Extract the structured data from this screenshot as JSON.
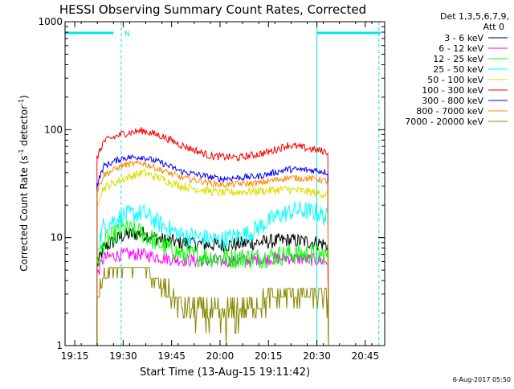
{
  "chart_data": {
    "type": "line",
    "title": "HESSI Observing Summary Count Rates, Corrected",
    "xlabel": "Start Time (13-Aug-15 19:11:42)",
    "ylabel_main": "Corrected Count Rate (s",
    "ylabel_sup1": "-1",
    "ylabel_mid": " detector",
    "ylabel_sup2": "-1",
    "ylabel_end": ")",
    "footer": "6-Aug-2017 05:50",
    "y_scale": "log",
    "ylim": [
      1,
      1000
    ],
    "xlim_minutes": [
      19.2,
      20.85
    ],
    "x_ticks": [
      {
        "t": 19.25,
        "label": "19:15"
      },
      {
        "t": 19.5,
        "label": "19:30"
      },
      {
        "t": 19.75,
        "label": "19:45"
      },
      {
        "t": 20.0,
        "label": "20:00"
      },
      {
        "t": 20.25,
        "label": "20:15"
      },
      {
        "t": 20.5,
        "label": "20:30"
      },
      {
        "t": 20.75,
        "label": "20:45"
      }
    ],
    "y_ticks": [
      {
        "v": 1,
        "label": "1"
      },
      {
        "v": 10,
        "label": "10"
      },
      {
        "v": 100,
        "label": "100"
      },
      {
        "v": 1000,
        "label": "1000"
      }
    ],
    "legend_header": [
      "Det 1,3,5,6,7,9,",
      "Att 0"
    ],
    "legend_position": "right",
    "flags": {
      "night_label": "N",
      "color": "#00e5e5",
      "night_intervals": [
        [
          19.2,
          19.45
        ],
        [
          20.5,
          20.83
        ]
      ],
      "solid_lines": [
        19.2,
        20.5
      ],
      "dashed_lines": [
        19.49,
        20.82
      ]
    },
    "series": [
      {
        "name": "3 - 6 keV",
        "color": "#000000",
        "noise": 0.07,
        "points": [
          [
            19.365,
            5.5
          ],
          [
            19.4,
            8
          ],
          [
            19.5,
            10.5
          ],
          [
            19.6,
            11
          ],
          [
            19.7,
            9.5
          ],
          [
            19.8,
            9
          ],
          [
            20.0,
            8.5
          ],
          [
            20.2,
            9
          ],
          [
            20.35,
            9.5
          ],
          [
            20.5,
            9
          ],
          [
            20.56,
            8.5
          ]
        ]
      },
      {
        "name": "6 - 12 keV",
        "color": "#ff00ff",
        "noise": 0.06,
        "points": [
          [
            19.365,
            4.5
          ],
          [
            19.4,
            6.5
          ],
          [
            19.5,
            7
          ],
          [
            19.6,
            7
          ],
          [
            19.7,
            6.5
          ],
          [
            19.8,
            6.2
          ],
          [
            20.0,
            6.0
          ],
          [
            20.2,
            6.3
          ],
          [
            20.35,
            6.5
          ],
          [
            20.5,
            6.2
          ],
          [
            20.56,
            6
          ]
        ]
      },
      {
        "name": "12 - 25 keV",
        "color": "#00ff00",
        "noise": 0.1,
        "points": [
          [
            19.365,
            5.5
          ],
          [
            19.4,
            9
          ],
          [
            19.5,
            12
          ],
          [
            19.6,
            11
          ],
          [
            19.7,
            8.5
          ],
          [
            19.8,
            7
          ],
          [
            20.0,
            6.5
          ],
          [
            20.2,
            6.5
          ],
          [
            20.35,
            7
          ],
          [
            20.5,
            7
          ],
          [
            20.56,
            6.8
          ]
        ]
      },
      {
        "name": "25 - 50 keV",
        "color": "#00ffff",
        "noise": 0.09,
        "points": [
          [
            19.365,
            8
          ],
          [
            19.4,
            13
          ],
          [
            19.5,
            16
          ],
          [
            19.6,
            17
          ],
          [
            19.7,
            13
          ],
          [
            19.8,
            10.5
          ],
          [
            20.0,
            9.5
          ],
          [
            20.15,
            11
          ],
          [
            20.3,
            16
          ],
          [
            20.4,
            18
          ],
          [
            20.5,
            17
          ],
          [
            20.56,
            15
          ]
        ]
      },
      {
        "name": "50 - 100 keV",
        "color": "#dddd00",
        "noise": 0.04,
        "points": [
          [
            19.365,
            21
          ],
          [
            19.4,
            29
          ],
          [
            19.5,
            35
          ],
          [
            19.6,
            40
          ],
          [
            19.7,
            35
          ],
          [
            19.8,
            30
          ],
          [
            20.0,
            26
          ],
          [
            20.2,
            27
          ],
          [
            20.35,
            28
          ],
          [
            20.5,
            26
          ],
          [
            20.56,
            25
          ]
        ]
      },
      {
        "name": "100 - 300 keV",
        "color": "#ff0000",
        "noise": 0.035,
        "points": [
          [
            19.365,
            55
          ],
          [
            19.4,
            78
          ],
          [
            19.5,
            92
          ],
          [
            19.6,
            98
          ],
          [
            19.7,
            87
          ],
          [
            19.8,
            72
          ],
          [
            19.95,
            57
          ],
          [
            20.1,
            55
          ],
          [
            20.25,
            62
          ],
          [
            20.35,
            72
          ],
          [
            20.45,
            67
          ],
          [
            20.56,
            62
          ]
        ]
      },
      {
        "name": "300 - 800 keV",
        "color": "#0000ff",
        "noise": 0.03,
        "points": [
          [
            19.365,
            31
          ],
          [
            19.4,
            46
          ],
          [
            19.5,
            55
          ],
          [
            19.6,
            56
          ],
          [
            19.7,
            49
          ],
          [
            19.8,
            41
          ],
          [
            20.0,
            35
          ],
          [
            20.2,
            37
          ],
          [
            20.35,
            43
          ],
          [
            20.5,
            42
          ],
          [
            20.56,
            40
          ]
        ]
      },
      {
        "name": "800 - 7000 keV",
        "color": "#ff8800",
        "noise": 0.03,
        "points": [
          [
            19.365,
            27
          ],
          [
            19.4,
            38
          ],
          [
            19.5,
            47
          ],
          [
            19.6,
            49
          ],
          [
            19.7,
            42
          ],
          [
            19.8,
            36
          ],
          [
            20.0,
            31
          ],
          [
            20.2,
            32
          ],
          [
            20.35,
            36
          ],
          [
            20.5,
            35
          ],
          [
            20.56,
            33
          ]
        ]
      },
      {
        "name": "7000 - 20000 keV",
        "color": "#888800",
        "noise": 0,
        "quantized": true,
        "points": [
          [
            19.365,
            2.2
          ],
          [
            19.4,
            4.5
          ],
          [
            19.5,
            5.5
          ],
          [
            19.6,
            5.5
          ],
          [
            19.7,
            3.5
          ],
          [
            19.8,
            2.4
          ],
          [
            20.0,
            1.8
          ],
          [
            20.2,
            2.5
          ],
          [
            20.35,
            3.0
          ],
          [
            20.5,
            3.0
          ],
          [
            20.56,
            2.5
          ]
        ]
      }
    ]
  }
}
